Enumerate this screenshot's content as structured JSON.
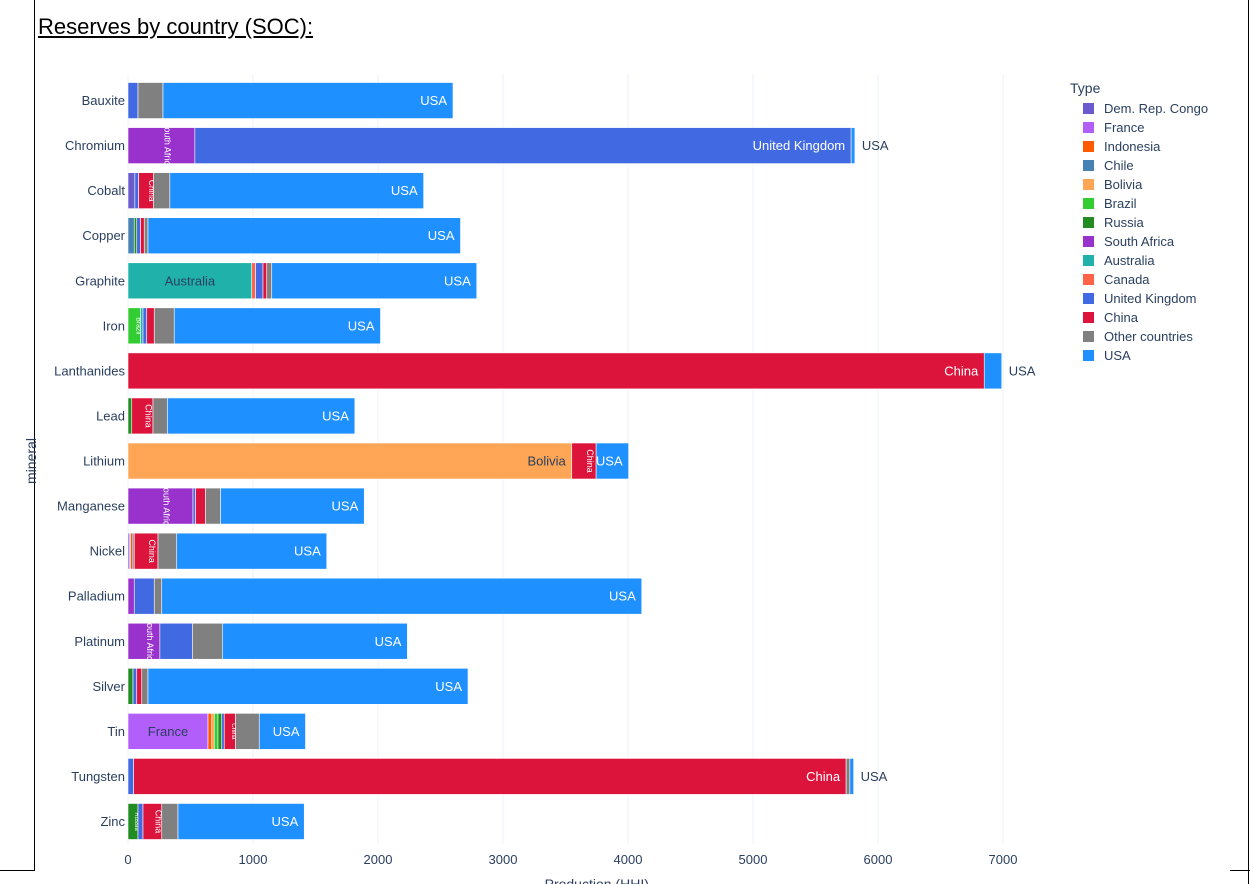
{
  "heading": "Reserves by country (SOC):",
  "chart_data": {
    "type": "bar",
    "orientation": "horizontal",
    "barmode": "stack",
    "xlabel": "Production (HHI)",
    "ylabel": "mineral",
    "xlim": [
      0,
      7500
    ],
    "xticks": [
      0,
      1000,
      2000,
      3000,
      4000,
      5000,
      6000,
      7000
    ],
    "legend_title": "Type",
    "legend_position": "right",
    "categories": [
      "Bauxite",
      "Chromium",
      "Cobalt",
      "Copper",
      "Graphite",
      "Iron",
      "Lanthanides",
      "Lead",
      "Lithium",
      "Manganese",
      "Nickel",
      "Palladium",
      "Platinum",
      "Silver",
      "Tin",
      "Tungsten",
      "Zinc"
    ],
    "series": [
      {
        "name": "Dem. Rep. Congo",
        "color": "#6a5acd",
        "values": [
          0,
          0,
          55,
          0,
          0,
          0,
          0,
          0,
          0,
          0,
          10,
          0,
          0,
          0,
          0,
          0,
          0
        ]
      },
      {
        "name": "France",
        "color": "#b15efa",
        "values": [
          0,
          0,
          0,
          0,
          0,
          0,
          0,
          0,
          0,
          0,
          10,
          0,
          0,
          0,
          640,
          0,
          0
        ]
      },
      {
        "name": "Indonesia",
        "color": "#ff5a00",
        "values": [
          0,
          0,
          0,
          0,
          0,
          0,
          0,
          0,
          0,
          0,
          20,
          0,
          0,
          0,
          30,
          0,
          0
        ]
      },
      {
        "name": "Chile",
        "color": "#4682b4",
        "values": [
          0,
          0,
          0,
          50,
          0,
          0,
          0,
          0,
          0,
          0,
          0,
          0,
          0,
          0,
          0,
          0,
          0
        ]
      },
      {
        "name": "Bolivia",
        "color": "#ffa556",
        "values": [
          0,
          0,
          0,
          0,
          0,
          0,
          0,
          0,
          3550,
          0,
          0,
          0,
          0,
          0,
          20,
          0,
          0
        ]
      },
      {
        "name": "Brazil",
        "color": "#32cd32",
        "values": [
          0,
          0,
          0,
          0,
          0,
          100,
          0,
          0,
          0,
          0,
          0,
          0,
          0,
          0,
          30,
          0,
          0
        ]
      },
      {
        "name": "Russia",
        "color": "#228b22",
        "values": [
          0,
          0,
          0,
          20,
          0,
          0,
          0,
          30,
          0,
          0,
          0,
          0,
          0,
          40,
          30,
          0,
          80
        ]
      },
      {
        "name": "South Africa",
        "color": "#9932cc",
        "values": [
          0,
          535,
          0,
          0,
          0,
          0,
          0,
          0,
          0,
          520,
          0,
          50,
          255,
          0,
          0,
          0,
          0
        ]
      },
      {
        "name": "Australia",
        "color": "#20b2aa",
        "values": [
          0,
          0,
          0,
          0,
          990,
          20,
          0,
          0,
          0,
          0,
          0,
          0,
          0,
          0,
          0,
          0,
          0
        ]
      },
      {
        "name": "Canada",
        "color": "#ff6347",
        "values": [
          0,
          0,
          0,
          0,
          30,
          0,
          0,
          0,
          0,
          0,
          0,
          0,
          0,
          0,
          0,
          0,
          0
        ]
      },
      {
        "name": "United Kingdom",
        "color": "#4169e1",
        "values": [
          80,
          5250,
          30,
          30,
          60,
          30,
          0,
          0,
          0,
          20,
          10,
          160,
          260,
          30,
          20,
          45,
          40
        ]
      },
      {
        "name": "China",
        "color": "#dc143c",
        "values": [
          0,
          0,
          120,
          30,
          30,
          60,
          6850,
          170,
          195,
          80,
          190,
          0,
          0,
          40,
          90,
          5700,
          150
        ]
      },
      {
        "name": "Other countries",
        "color": "#808080",
        "values": [
          200,
          0,
          130,
          30,
          40,
          160,
          0,
          115,
          0,
          120,
          150,
          60,
          240,
          50,
          190,
          30,
          130
        ]
      },
      {
        "name": "USA",
        "color": "#1e90ff",
        "values": [
          2320,
          30,
          2030,
          2500,
          1640,
          1650,
          140,
          1500,
          260,
          1150,
          1200,
          3840,
          1480,
          2560,
          370,
          30,
          1010
        ]
      }
    ],
    "data_labels": {
      "Bauxite": [
        "USA"
      ],
      "Chromium": [
        "South Africa",
        "United Kingdom",
        "USA"
      ],
      "Cobalt": [
        "China",
        "USA"
      ],
      "Copper": [
        "USA"
      ],
      "Graphite": [
        "Australia",
        "USA"
      ],
      "Iron": [
        "Brazil",
        "USA"
      ],
      "Lanthanides": [
        "China",
        "USA"
      ],
      "Lead": [
        "China",
        "USA"
      ],
      "Lithium": [
        "Bolivia",
        "China",
        "USA"
      ],
      "Manganese": [
        "South Africa",
        "USA"
      ],
      "Nickel": [
        "China",
        "USA"
      ],
      "Palladium": [
        "USA"
      ],
      "Platinum": [
        "South Africa",
        "USA"
      ],
      "Silver": [
        "USA"
      ],
      "Tin": [
        "France",
        "China",
        "USA"
      ],
      "Tungsten": [
        "China",
        "USA"
      ],
      "Zinc": [
        "Russia",
        "China",
        "USA"
      ]
    },
    "grid": true
  }
}
